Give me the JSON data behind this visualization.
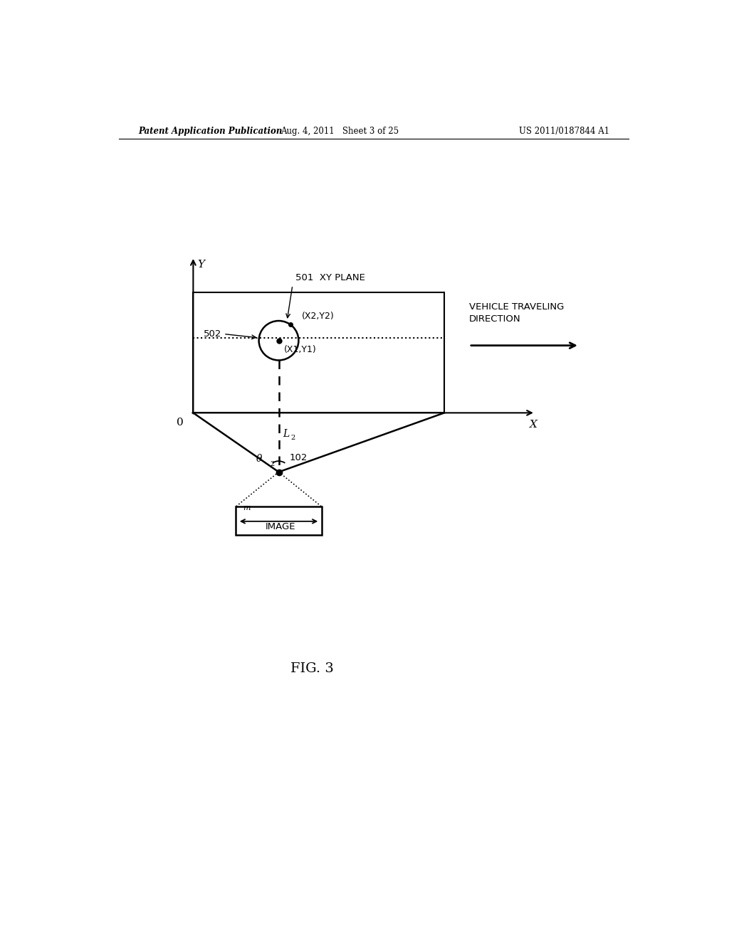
{
  "bg_color": "#ffffff",
  "header_left": "Patent Application Publication",
  "header_center": "Aug. 4, 2011   Sheet 3 of 25",
  "header_right": "US 2011/0187844 A1",
  "fig_label": "FIG. 3",
  "figure_title": "XY PLANE",
  "label_501": "501",
  "label_502": "502",
  "label_102": "102",
  "label_x2y2": "(X2,Y2)",
  "label_x1y1": "(X1,Y1)",
  "label_L2": "L",
  "label_L2_sub": "2",
  "label_theta2": "θ",
  "label_theta2_sub": "2",
  "label_m": "m",
  "label_image": "IMAGE",
  "label_vehicle": "VEHICLE TRAVELING\nDIRECTION",
  "label_0": "0",
  "label_X": "X",
  "label_Y": "Y",
  "page_width": 10.24,
  "page_height": 13.2
}
